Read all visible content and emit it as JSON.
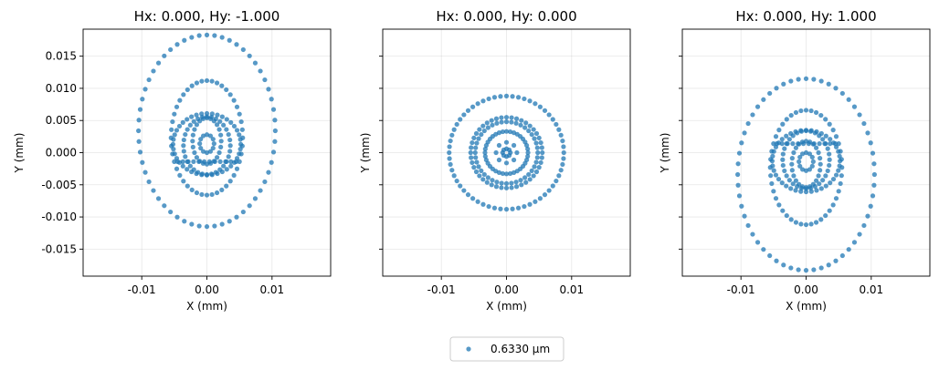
{
  "chart_data": [
    {
      "type": "scatter",
      "title": "Hx: 0.000, Hy: -1.000",
      "xlabel": "X (mm)",
      "ylabel": "Y (mm)",
      "xlim": [
        -0.019,
        0.019
      ],
      "ylim": [
        -0.0192,
        0.0192
      ],
      "xticks": [
        "-0.01",
        "0.00",
        "0.01"
      ],
      "xtick_values": [
        -0.01,
        0.0,
        0.01
      ],
      "yticks": [
        "0.015",
        "0.010",
        "0.005",
        "0.000",
        "-0.005",
        "-0.010",
        "-0.015"
      ],
      "ytick_values": [
        0.015,
        0.01,
        0.005,
        0.0,
        -0.005,
        -0.01,
        -0.015
      ],
      "show_yticklabels": true,
      "grid": true,
      "rings": [
        {
          "cx": 0.0,
          "cy": 0.0034,
          "rx": 0.0105,
          "ry": 0.0149,
          "n": 56
        },
        {
          "cx": 0.0,
          "cy": 0.0023,
          "rx": 0.0055,
          "ry": 0.0089,
          "n": 44
        },
        {
          "cx": 0.0,
          "cy": 0.0013,
          "rx": 0.0052,
          "ry": 0.0048,
          "n": 40
        },
        {
          "cx": 0.0,
          "cy": 0.0011,
          "rx": 0.0036,
          "ry": 0.0045,
          "n": 32
        },
        {
          "cx": 0.0,
          "cy": 0.0018,
          "rx": 0.0022,
          "ry": 0.0036,
          "n": 24
        },
        {
          "cx": 0.0,
          "cy": 0.0014,
          "rx": 0.0011,
          "ry": 0.0014,
          "n": 12
        }
      ],
      "bar": {
        "y": -0.0014,
        "x0": -0.0045,
        "x1": 0.0045,
        "n": 12
      }
    },
    {
      "type": "scatter",
      "title": "Hx: 0.000, Hy: 0.000",
      "xlabel": "X (mm)",
      "ylabel": "Y (mm)",
      "xlim": [
        -0.019,
        0.019
      ],
      "ylim": [
        -0.0192,
        0.0192
      ],
      "xticks": [
        "-0.01",
        "0.00",
        "0.01"
      ],
      "xtick_values": [
        -0.01,
        0.0,
        0.01
      ],
      "yticks": [],
      "ytick_values": [
        0.015,
        0.01,
        0.005,
        0.0,
        -0.005,
        -0.01,
        -0.015
      ],
      "show_yticklabels": false,
      "grid": true,
      "rings": [
        {
          "cx": 0.0,
          "cy": 0.0,
          "rx": 0.0088,
          "ry": 0.0088,
          "n": 60
        },
        {
          "cx": 0.0,
          "cy": 0.0,
          "rx": 0.0055,
          "ry": 0.0055,
          "n": 44
        },
        {
          "cx": 0.0,
          "cy": 0.0,
          "rx": 0.0048,
          "ry": 0.0048,
          "n": 40
        },
        {
          "cx": 0.0,
          "cy": 0.0,
          "rx": 0.0033,
          "ry": 0.0033,
          "n": 36
        },
        {
          "cx": 0.0,
          "cy": 0.0,
          "rx": 0.0016,
          "ry": 0.0016,
          "n": 8
        },
        {
          "cx": 0.0,
          "cy": 0.0,
          "rx": 0.0006,
          "ry": 0.0006,
          "n": 8
        }
      ],
      "bar": null
    },
    {
      "type": "scatter",
      "title": "Hx: 0.000, Hy: 1.000",
      "xlabel": "X (mm)",
      "ylabel": "Y (mm)",
      "xlim": [
        -0.019,
        0.019
      ],
      "ylim": [
        -0.0192,
        0.0192
      ],
      "xticks": [
        "-0.01",
        "0.00",
        "0.01"
      ],
      "xtick_values": [
        -0.01,
        0.0,
        0.01
      ],
      "yticks": [],
      "ytick_values": [
        0.015,
        0.01,
        0.005,
        0.0,
        -0.005,
        -0.01,
        -0.015
      ],
      "show_yticklabels": false,
      "grid": true,
      "rings": [
        {
          "cx": 0.0,
          "cy": -0.0034,
          "rx": 0.0105,
          "ry": 0.0149,
          "n": 56
        },
        {
          "cx": 0.0,
          "cy": -0.0023,
          "rx": 0.0055,
          "ry": 0.0089,
          "n": 44
        },
        {
          "cx": 0.0,
          "cy": -0.0013,
          "rx": 0.0052,
          "ry": 0.0048,
          "n": 40
        },
        {
          "cx": 0.0,
          "cy": -0.0011,
          "rx": 0.0036,
          "ry": 0.0045,
          "n": 32
        },
        {
          "cx": 0.0,
          "cy": -0.0018,
          "rx": 0.0022,
          "ry": 0.0036,
          "n": 24
        },
        {
          "cx": 0.0,
          "cy": -0.0014,
          "rx": 0.0011,
          "ry": 0.0014,
          "n": 12
        }
      ],
      "bar": {
        "y": 0.0014,
        "x0": -0.0045,
        "x1": 0.0045,
        "n": 12
      }
    }
  ],
  "legend": {
    "label": "0.6330 µm",
    "placement": "bottom-center"
  },
  "colors": {
    "marker": "#1f77b4",
    "marker_alpha": 0.75
  }
}
